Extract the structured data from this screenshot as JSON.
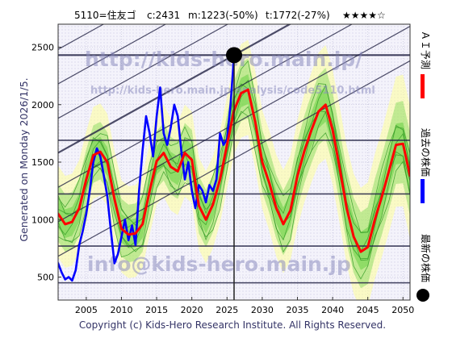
{
  "header": {
    "ticker": "5110=住友ゴ",
    "current": "c:2431",
    "mid": "m:1223(-50%)",
    "target": "t:1772(-27%)",
    "stars": "★★★★☆"
  },
  "side_left": "Generated on Monday 2026/1/5.",
  "legend_right": {
    "ai": "ＡＩ予測",
    "past": "過去の株価",
    "latest": "最新の株価"
  },
  "watermarks": {
    "url_top": "http://kids-hero.main.jp/",
    "url_mid": "http://kids-hero.main.jp/analysis/code5110.html",
    "email": "info@kids-hero.main.jp"
  },
  "footer": "Copyright (c) Kids-Hero Research Institute. All Rights Reserved.",
  "colors": {
    "ai_prediction": "#ff0000",
    "past_price": "#0000ff",
    "latest_marker": "#000000",
    "band_light": "#ffff99",
    "band_green": "#55cc33",
    "guide_lines": "#222244",
    "text": "#333366"
  },
  "chart_data": {
    "type": "line",
    "xlim": [
      2001,
      2051
    ],
    "ylim": [
      300,
      2700
    ],
    "x_ticks": [
      "2005",
      "2010",
      "2015",
      "2020",
      "2025",
      "2030",
      "2035",
      "2040",
      "2045",
      "2050"
    ],
    "y_ticks": [
      "500",
      "1000",
      "1500",
      "2000",
      "2500"
    ],
    "grid": true,
    "horizontal_levels": [
      2431,
      1690,
      1223,
      770,
      450
    ],
    "latest_point": {
      "x": 2026.0,
      "y": 2431
    },
    "series": [
      {
        "name": "過去の株価",
        "x": [
          2001.0,
          2001.5,
          2002.0,
          2002.5,
          2003.0,
          2003.5,
          2004.0,
          2004.5,
          2005.0,
          2005.5,
          2006.0,
          2006.5,
          2007.0,
          2007.5,
          2008.0,
          2008.5,
          2009.0,
          2009.5,
          2010.0,
          2010.5,
          2011.0,
          2011.5,
          2012.0,
          2012.5,
          2013.0,
          2013.5,
          2014.0,
          2014.5,
          2015.0,
          2015.5,
          2016.0,
          2016.5,
          2017.0,
          2017.5,
          2018.0,
          2018.5,
          2019.0,
          2019.5,
          2020.0,
          2020.5,
          2021.0,
          2021.5,
          2022.0,
          2022.5,
          2023.0,
          2023.5,
          2024.0,
          2024.5,
          2025.0,
          2025.5,
          2026.0
        ],
        "values": [
          620,
          540,
          480,
          500,
          470,
          560,
          780,
          900,
          1050,
          1250,
          1500,
          1620,
          1550,
          1380,
          1200,
          900,
          620,
          700,
          850,
          1000,
          820,
          950,
          780,
          1250,
          1600,
          1900,
          1750,
          1550,
          1900,
          2150,
          1750,
          1650,
          1800,
          2000,
          1900,
          1600,
          1350,
          1500,
          1250,
          1100,
          1300,
          1250,
          1150,
          1300,
          1250,
          1350,
          1750,
          1650,
          1700,
          2000,
          2431
        ]
      },
      {
        "name": "ＡＩ予測",
        "x": [
          2001,
          2002,
          2003,
          2004,
          2005,
          2006,
          2007,
          2008,
          2009,
          2010,
          2011,
          2012,
          2013,
          2014,
          2015,
          2016,
          2017,
          2018,
          2019,
          2020,
          2021,
          2022,
          2023,
          2024,
          2025,
          2026,
          2027,
          2028,
          2029,
          2030,
          2031,
          2032,
          2033,
          2034,
          2035,
          2036,
          2037,
          2038,
          2039,
          2040,
          2041,
          2042,
          2043,
          2044,
          2045,
          2046,
          2047,
          2048,
          2049,
          2050,
          2051
        ],
        "values": [
          1050,
          960,
          980,
          1100,
          1350,
          1560,
          1590,
          1500,
          1180,
          920,
          870,
          880,
          960,
          1250,
          1510,
          1580,
          1460,
          1420,
          1580,
          1520,
          1120,
          1000,
          1130,
          1350,
          1650,
          1950,
          2100,
          2130,
          1850,
          1500,
          1320,
          1100,
          960,
          1080,
          1380,
          1600,
          1780,
          1940,
          2000,
          1780,
          1450,
          1100,
          850,
          720,
          760,
          1000,
          1200,
          1420,
          1650,
          1660,
          1380
        ]
      }
    ]
  }
}
